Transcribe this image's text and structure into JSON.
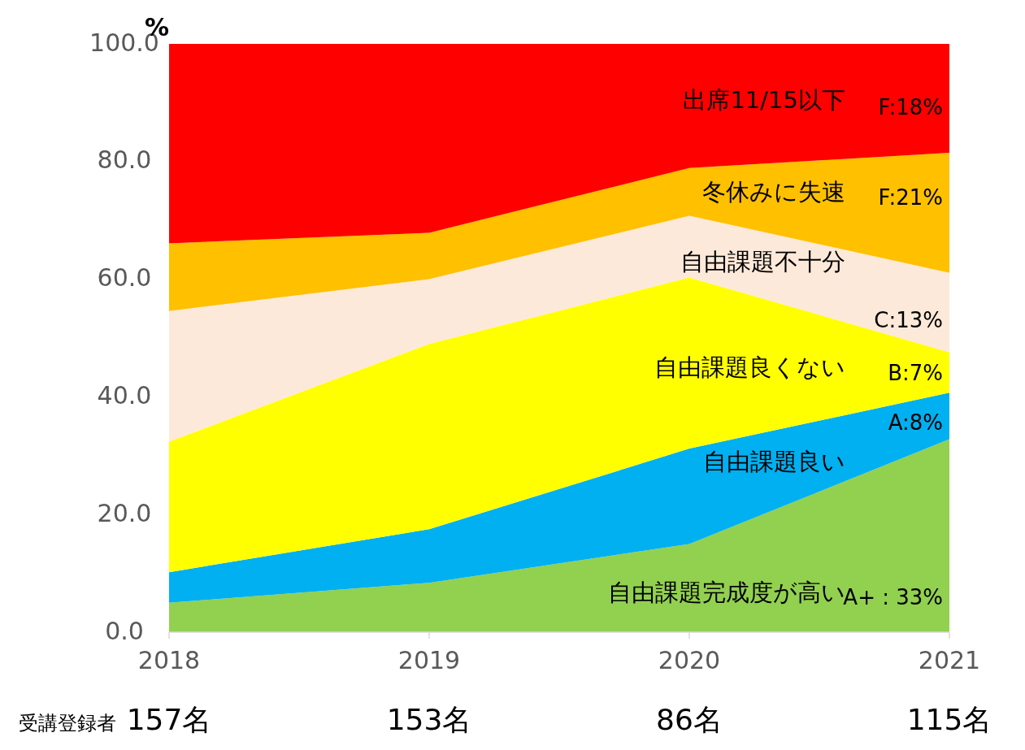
{
  "chart_data": {
    "type": "area",
    "stacked": true,
    "ylabel": "%",
    "categories": [
      "2018",
      "2019",
      "2020",
      "2021"
    ],
    "series": [
      {
        "name": "自由課題完成度が高い",
        "color": "#92d050",
        "values": [
          5.0,
          8.4,
          15.0,
          32.8
        ]
      },
      {
        "name": "自由課題良い",
        "color": "#00b0f0",
        "values": [
          5.2,
          9.1,
          16.2,
          7.9
        ]
      },
      {
        "name": "自由課題良くない",
        "color": "#ffff00",
        "values": [
          22.2,
          31.5,
          29.1,
          6.9
        ]
      },
      {
        "name": "自由課題不十分",
        "color": "#fde9d9",
        "values": [
          22.2,
          11.0,
          10.5,
          13.5
        ]
      },
      {
        "name": "冬休みに失速",
        "color": "#ffc000",
        "values": [
          11.5,
          7.9,
          8.1,
          20.4
        ]
      },
      {
        "name": "出席11/15以下",
        "color": "#ff0000",
        "values": [
          33.9,
          32.1,
          21.1,
          18.5
        ]
      }
    ],
    "ylim": [
      0,
      100
    ],
    "yticks": [
      {
        "value": 0,
        "label": "0.0"
      },
      {
        "value": 20,
        "label": "20.0"
      },
      {
        "value": 40,
        "label": "40.0"
      },
      {
        "value": 60,
        "label": "60.0"
      },
      {
        "value": 80,
        "label": "80.0"
      },
      {
        "value": 100,
        "label": "100.0"
      }
    ],
    "grid": false,
    "annotations": [
      {
        "text": "A+ : 33%",
        "x": "2021",
        "y": 5.7
      },
      {
        "text": "A:8%",
        "x": "2021",
        "y": 35.4
      },
      {
        "text": "B:7%",
        "x": "2021",
        "y": 43.9
      },
      {
        "text": "C:13%",
        "x": "2021",
        "y": 52.8
      },
      {
        "text": "F:21%",
        "x": "2021",
        "y": 73.7
      },
      {
        "text": "F:18%",
        "x": "2021",
        "y": 89
      },
      "受講登録者",
      "157名",
      "153名",
      "86名",
      "115名"
    ]
  }
}
